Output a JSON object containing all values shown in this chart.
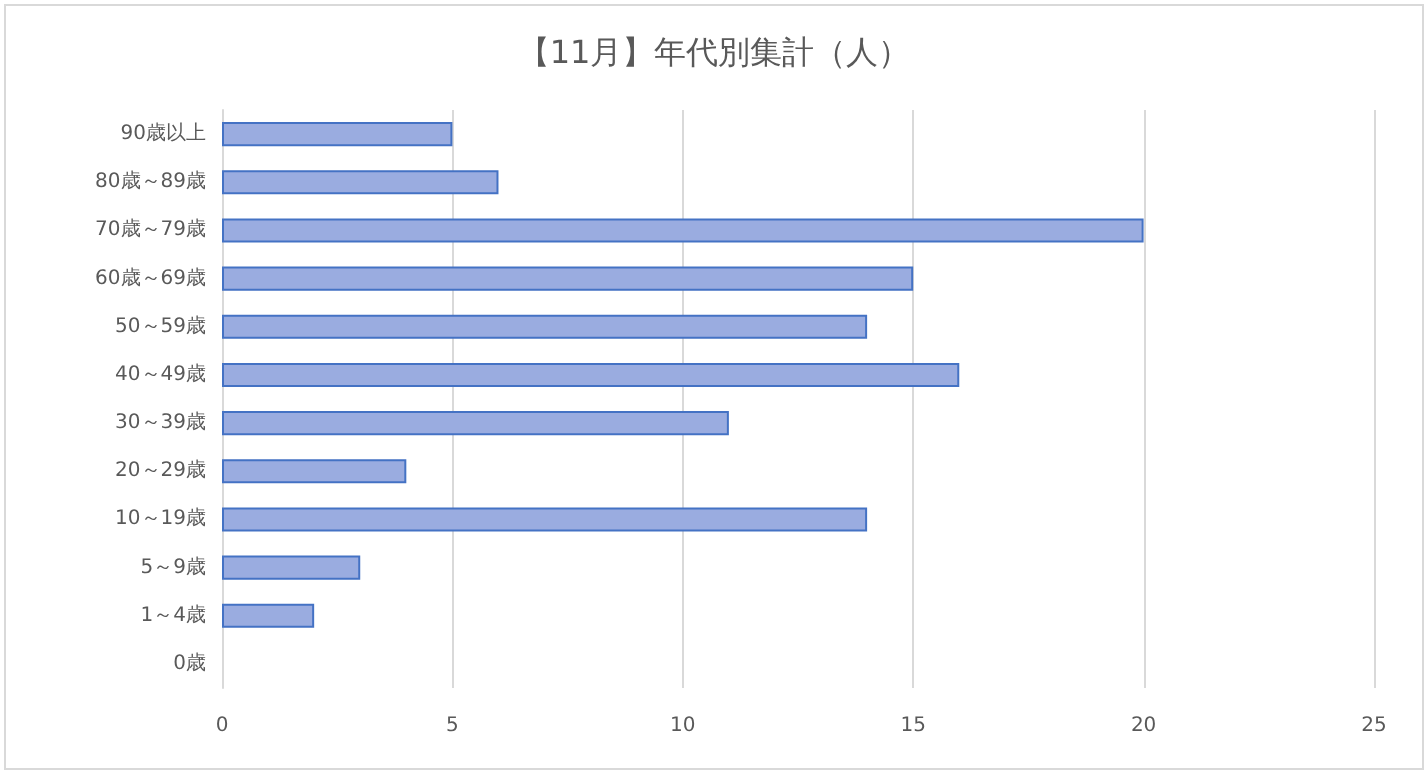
{
  "chart_data": {
    "type": "bar",
    "orientation": "horizontal",
    "title": "【11月】年代別集計（人）",
    "categories": [
      "90歳以上",
      "80歳～89歳",
      "70歳～79歳",
      "60歳～69歳",
      "50～59歳",
      "40～49歳",
      "30～39歳",
      "20～29歳",
      "10～19歳",
      "5～9歳",
      "1～4歳",
      "0歳"
    ],
    "values": [
      5,
      6,
      20,
      15,
      14,
      16,
      11,
      4,
      14,
      3,
      2,
      0
    ],
    "color": "#9aace0",
    "xlim": [
      0,
      25
    ],
    "xticks": [
      0,
      5,
      10,
      15,
      20,
      25
    ],
    "grid": "x"
  }
}
